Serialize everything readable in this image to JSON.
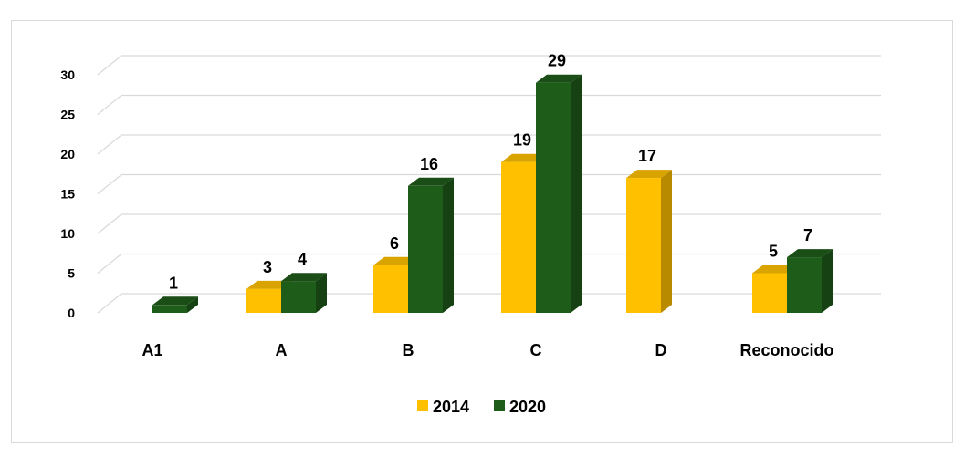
{
  "chart_data": {
    "type": "bar",
    "title": "",
    "xlabel": "",
    "ylabel": "",
    "ylim": [
      0,
      30
    ],
    "yticks": [
      0,
      5,
      10,
      15,
      20,
      25,
      30
    ],
    "grid": true,
    "legend_position": "bottom",
    "categories": [
      "A1",
      "A",
      "B",
      "C",
      "D",
      "Reconocido"
    ],
    "series": [
      {
        "name": "2014",
        "values": [
          null,
          3,
          6,
          19,
          17,
          5
        ],
        "color": "#FFC000"
      },
      {
        "name": "2020",
        "values": [
          1,
          4,
          16,
          29,
          null,
          7
        ],
        "color": "#1E5C1A"
      }
    ]
  }
}
